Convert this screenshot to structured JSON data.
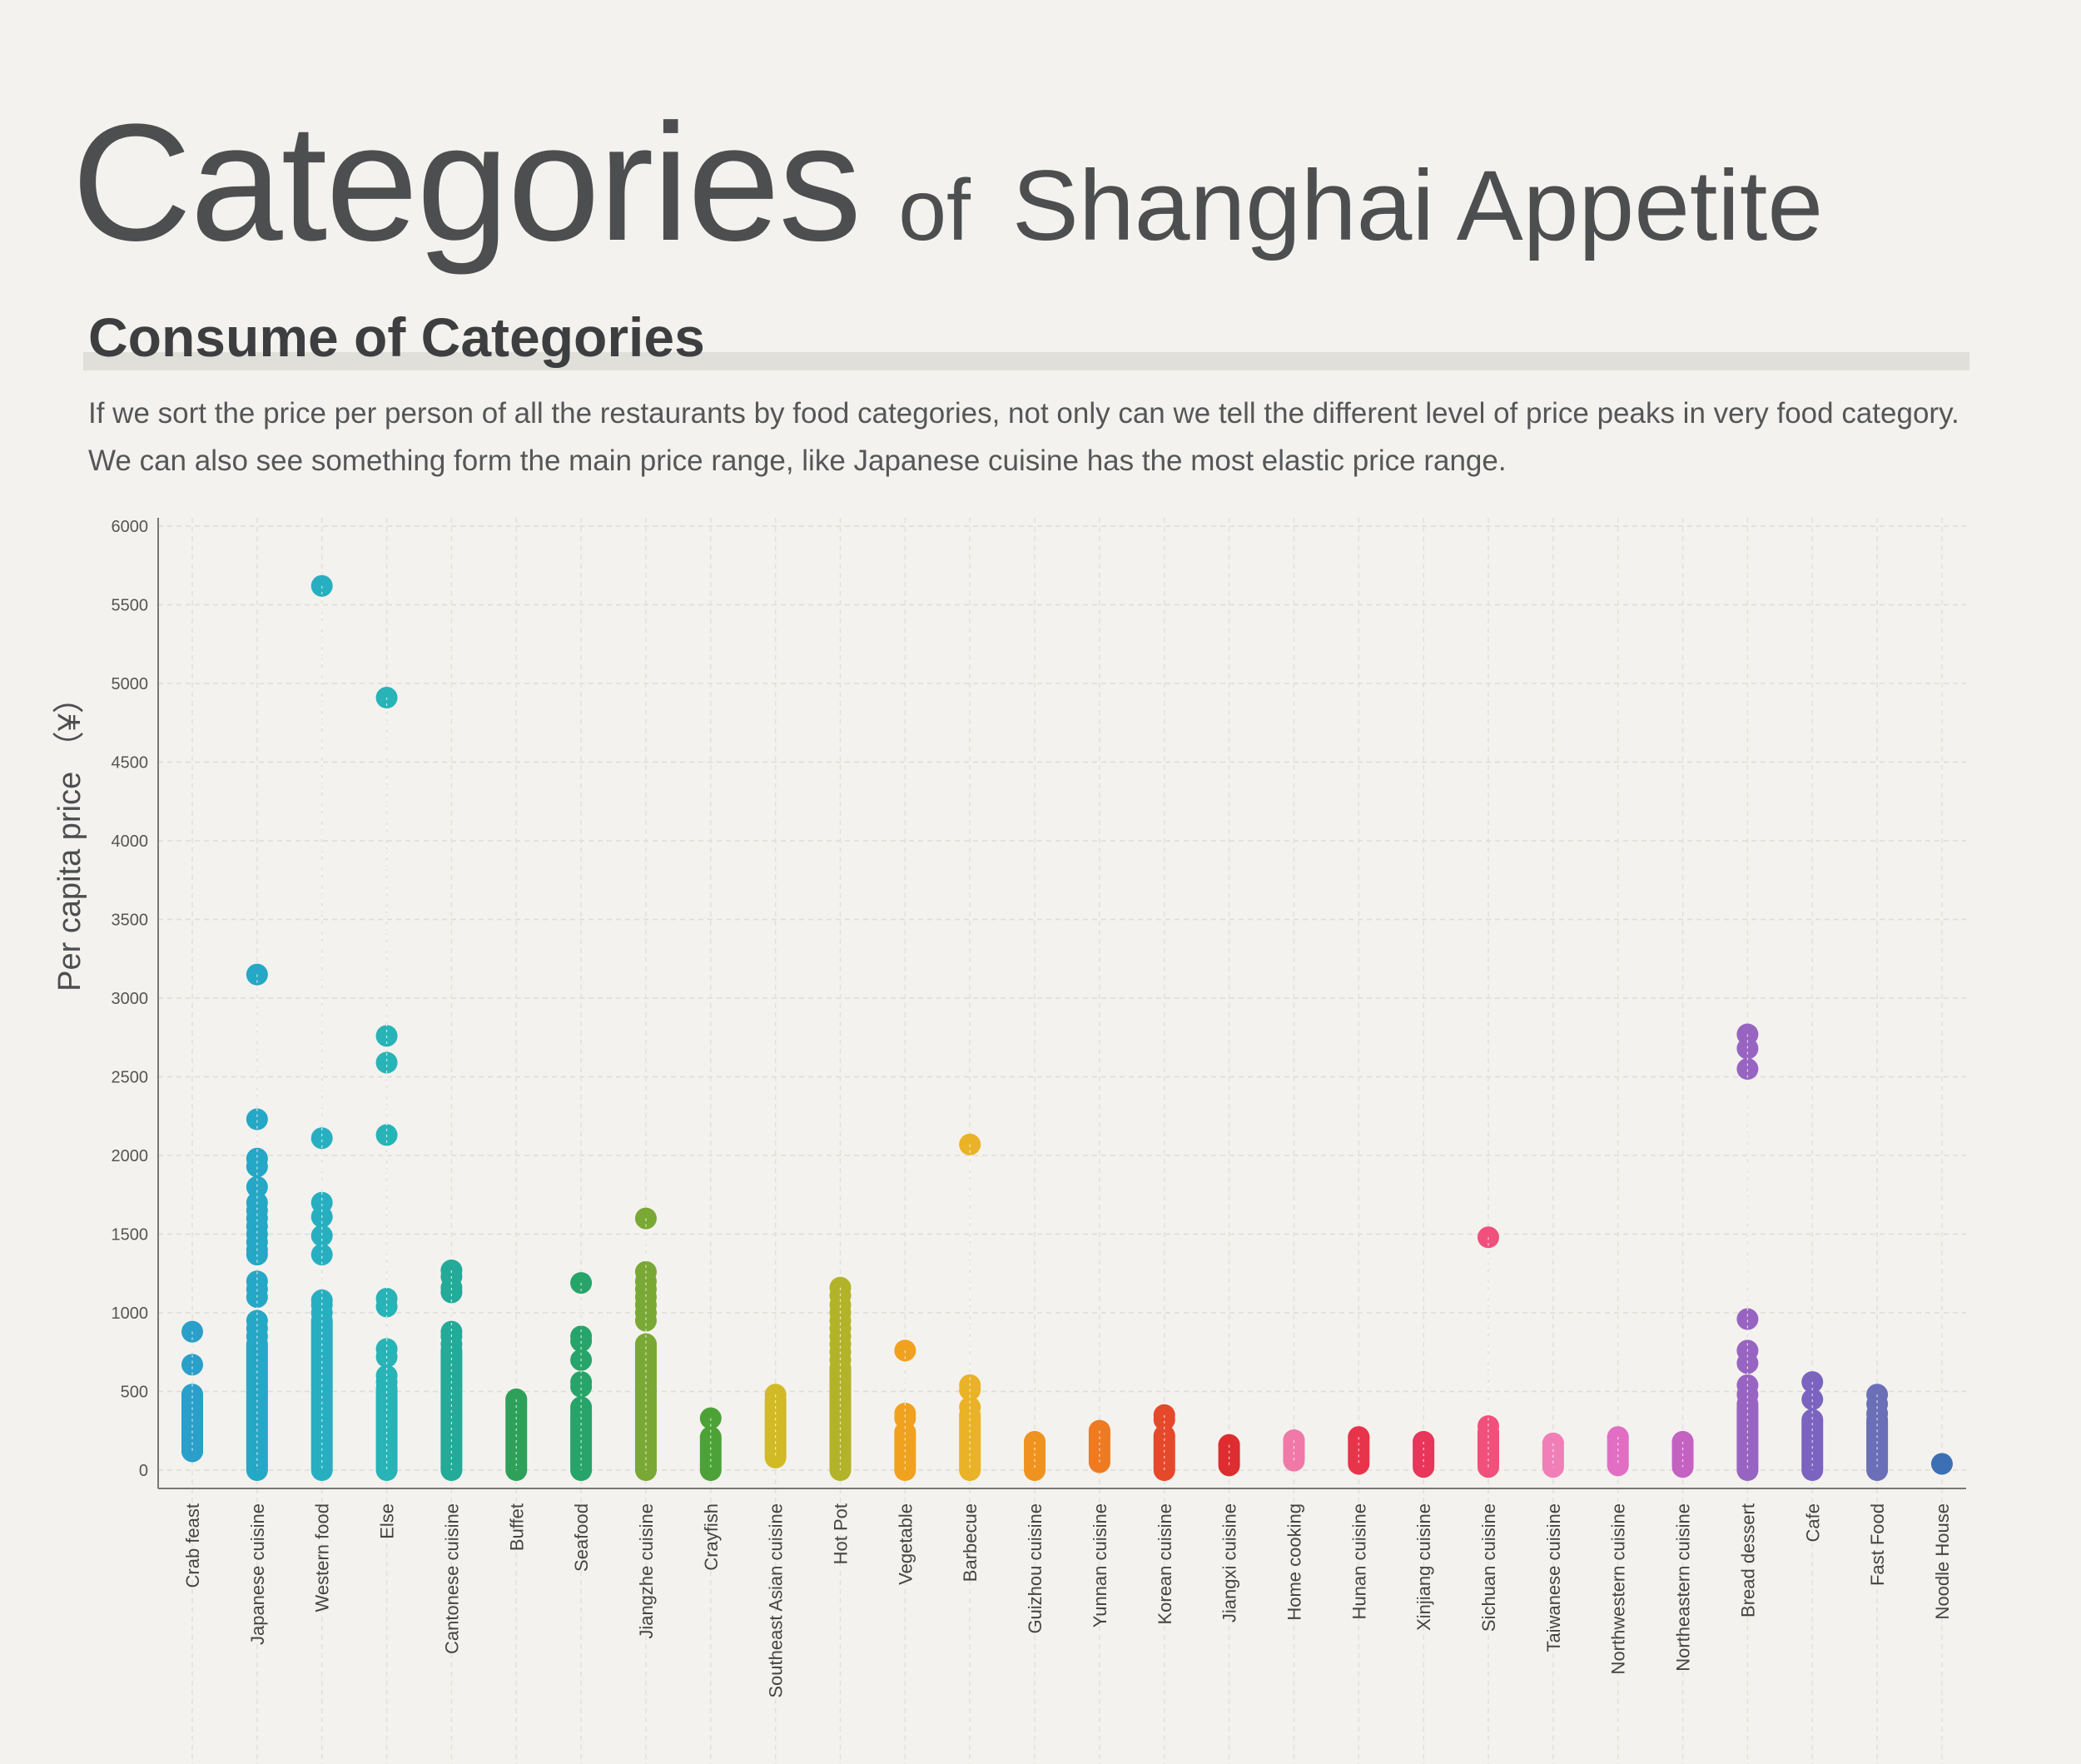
{
  "header": {
    "title_main": "Categories",
    "title_of": "of",
    "title_rest": "Shanghai Appetite",
    "subtitle": "Consume of Categories",
    "description_line1": "If we sort the price per person of all the restaurants by food categories, not only can we tell the different level of price peaks in very food category.",
    "description_line2": "We can also see something form the main price range, like Japanese cuisine has the most elastic price range."
  },
  "chart_data": {
    "type": "scatter",
    "ylabel": "Per capita price （¥）",
    "xlabel": "",
    "ylim": [
      0,
      6000
    ],
    "yticks": [
      0,
      500,
      1000,
      1500,
      2000,
      2500,
      3000,
      3500,
      4000,
      4500,
      5000,
      5500,
      6000
    ],
    "grid": true,
    "categories": [
      {
        "name": "Crab feast",
        "color": "#2a9fc9",
        "points": [
          880,
          670,
          480,
          420,
          300,
          260,
          210,
          120
        ],
        "ranges": [
          [
            120,
            480
          ]
        ]
      },
      {
        "name": "Japanese cuisine",
        "color": "#25a7c6",
        "points": [
          3150,
          2230,
          1980,
          1930,
          1800,
          1700,
          1650,
          1600,
          1550,
          1500,
          1450,
          1400,
          1370,
          1200,
          1150,
          1100,
          950,
          900,
          850
        ],
        "ranges": [
          [
            0,
            800
          ]
        ]
      },
      {
        "name": "Western food",
        "color": "#27afc1",
        "points": [
          5620,
          2110,
          1700,
          1610,
          1490,
          1370,
          1080,
          1050,
          1000
        ],
        "ranges": [
          [
            0,
            950
          ]
        ]
      },
      {
        "name": "Else",
        "color": "#28b3b6",
        "points": [
          4910,
          2760,
          2590,
          2130,
          1090,
          1040,
          770,
          720,
          600,
          560
        ],
        "ranges": [
          [
            0,
            520
          ]
        ]
      },
      {
        "name": "Cantonese cuisine",
        "color": "#23aa98",
        "points": [
          1270,
          1230,
          1160,
          1130,
          880,
          850,
          800
        ],
        "ranges": [
          [
            0,
            760
          ]
        ]
      },
      {
        "name": "Buffet",
        "color": "#2ea05a",
        "points": [
          450
        ],
        "ranges": [
          [
            0,
            450
          ]
        ]
      },
      {
        "name": "Seafood",
        "color": "#27a46a",
        "points": [
          1190,
          850,
          820,
          700,
          560,
          530,
          400
        ],
        "ranges": [
          [
            0,
            380
          ]
        ]
      },
      {
        "name": "Jiangzhe cuisine",
        "color": "#7aa834",
        "points": [
          1600,
          1260,
          1200,
          1150,
          1100,
          1050,
          1000,
          950,
          800
        ],
        "ranges": [
          [
            0,
            800
          ]
        ]
      },
      {
        "name": "Crayfish",
        "color": "#4da237",
        "points": [
          330
        ],
        "ranges": [
          [
            0,
            210
          ]
        ]
      },
      {
        "name": "Southeast Asian cuisine",
        "color": "#d1ba26",
        "points": [
          480
        ],
        "ranges": [
          [
            80,
            450
          ]
        ]
      },
      {
        "name": "Hot Pot",
        "color": "#b3b32a",
        "points": [
          1160,
          1110,
          1050,
          1000,
          950,
          900,
          850,
          800,
          750,
          700
        ],
        "ranges": [
          [
            0,
            650
          ]
        ]
      },
      {
        "name": "Vegetable",
        "color": "#f0a11e",
        "points": [
          760,
          360,
          330,
          240
        ],
        "ranges": [
          [
            0,
            240
          ]
        ]
      },
      {
        "name": "Barbecue",
        "color": "#eab226",
        "points": [
          2070,
          540,
          510,
          400,
          350
        ],
        "ranges": [
          [
            0,
            340
          ]
        ]
      },
      {
        "name": "Guizhou cuisine",
        "color": "#ef931e",
        "points": [
          180
        ],
        "ranges": [
          [
            0,
            180
          ]
        ]
      },
      {
        "name": "Yunnan cuisine",
        "color": "#ee7a22",
        "points": [
          250
        ],
        "ranges": [
          [
            50,
            250
          ]
        ]
      },
      {
        "name": "Korean cuisine",
        "color": "#e5482a",
        "points": [
          350,
          320
        ],
        "ranges": [
          [
            0,
            220
          ]
        ]
      },
      {
        "name": "Jiangxi cuisine",
        "color": "#de2d30",
        "points": [
          160
        ],
        "ranges": [
          [
            30,
            160
          ]
        ]
      },
      {
        "name": "Home cooking",
        "color": "#f079a8",
        "points": [
          190,
          80
        ],
        "ranges": [
          [
            60,
            190
          ]
        ]
      },
      {
        "name": "Hunan cuisine",
        "color": "#e8344a",
        "points": [
          210
        ],
        "ranges": [
          [
            40,
            210
          ]
        ]
      },
      {
        "name": "Xinjiang cuisine",
        "color": "#e8355a",
        "points": [
          180
        ],
        "ranges": [
          [
            20,
            180
          ]
        ]
      },
      {
        "name": "Sichuan cuisine",
        "color": "#f0507b",
        "points": [
          1480,
          280,
          240
        ],
        "ranges": [
          [
            20,
            240
          ]
        ]
      },
      {
        "name": "Taiwanese cuisine",
        "color": "#f07fb8",
        "points": [
          170
        ],
        "ranges": [
          [
            20,
            170
          ]
        ]
      },
      {
        "name": "Northwestern cuisine",
        "color": "#e26ec3",
        "points": [
          210
        ],
        "ranges": [
          [
            30,
            210
          ]
        ]
      },
      {
        "name": "Northeastern cuisine",
        "color": "#c462c2",
        "points": [
          180
        ],
        "ranges": [
          [
            20,
            180
          ]
        ]
      },
      {
        "name": "Bread dessert",
        "color": "#9864c1",
        "points": [
          2770,
          2680,
          2550,
          960,
          760,
          680,
          540,
          480,
          420
        ],
        "ranges": [
          [
            0,
            400
          ]
        ]
      },
      {
        "name": "Cafe",
        "color": "#7b64c0",
        "points": [
          560,
          450
        ],
        "ranges": [
          [
            0,
            320
          ]
        ]
      },
      {
        "name": "Fast Food",
        "color": "#6a6fb7",
        "points": [
          480,
          420,
          360
        ],
        "ranges": [
          [
            0,
            320
          ]
        ]
      },
      {
        "name": "Noodle House",
        "color": "#3d6fb5",
        "points": [
          40
        ],
        "ranges": []
      }
    ]
  }
}
